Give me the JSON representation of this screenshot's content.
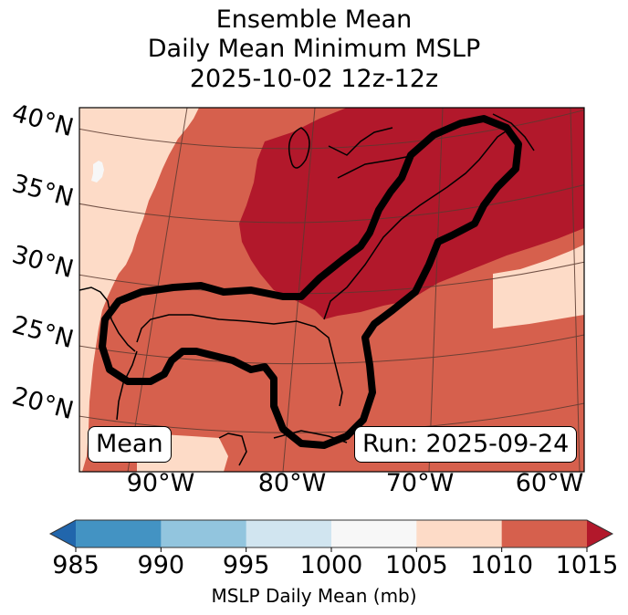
{
  "title": {
    "line1": "Ensemble Mean",
    "line2": "Daily Mean Minimum MSLP",
    "line3": "2025-10-02 12z-12z"
  },
  "map": {
    "lat_labels": [
      "40°N",
      "35°N",
      "30°N",
      "25°N",
      "20°N"
    ],
    "lon_labels": [
      "90°W",
      "80°W",
      "70°W",
      "60°W"
    ],
    "mean_label": "Mean",
    "run_label": "Run: 2025-09-24",
    "contour_color": "#000000",
    "region_values_mb": {
      "west_plains": "1005-1010",
      "central_us_gulf": "1010-1015",
      "northeast_great_lakes": ">1015",
      "atlantic_patch": "1005-1010",
      "small_patch_west": "1000-1005"
    }
  },
  "colorbar": {
    "label": "MSLP Daily Mean (mb)",
    "ticks": [
      "985",
      "990",
      "995",
      "1000",
      "1005",
      "1010",
      "1015"
    ],
    "bins": [
      {
        "range": "<985",
        "color": "#2166ac"
      },
      {
        "range": "985-990",
        "color": "#4393c3"
      },
      {
        "range": "990-995",
        "color": "#92c5de"
      },
      {
        "range": "995-1000",
        "color": "#d1e5f0"
      },
      {
        "range": "1000-1005",
        "color": "#f7f7f7"
      },
      {
        "range": "1005-1010",
        "color": "#fddbc7"
      },
      {
        "range": "1010-1015",
        "color": "#d6604d"
      },
      {
        "range": ">1015",
        "color": "#b2182b"
      }
    ]
  }
}
